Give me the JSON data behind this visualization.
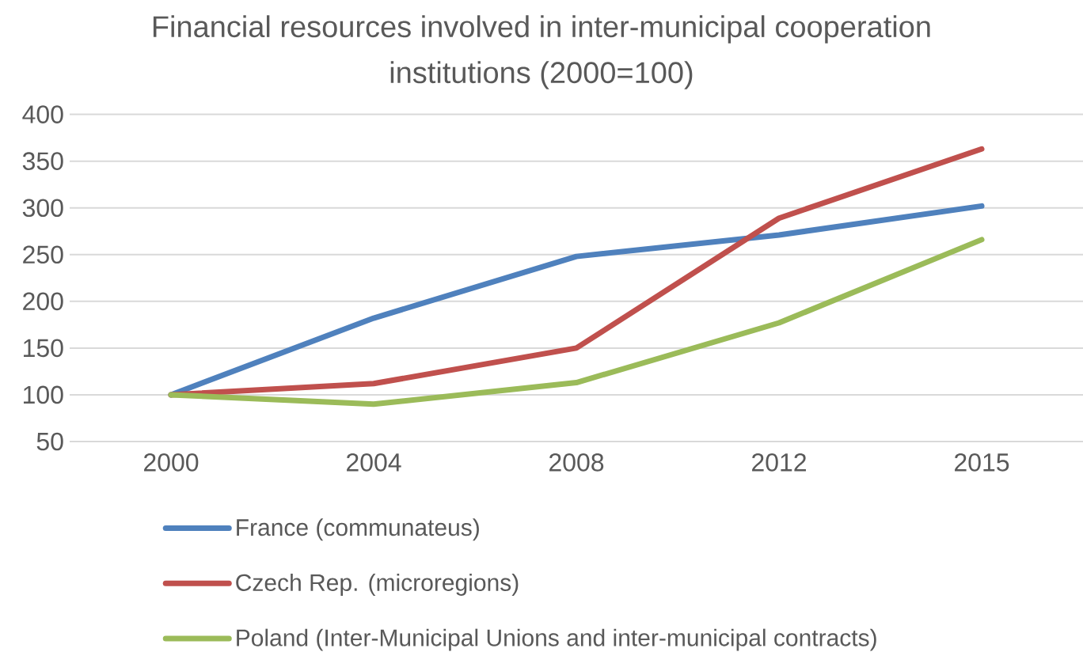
{
  "chart_data": {
    "type": "line",
    "title": "Financial resources involved in inter-municipal cooperation institutions (2000=100)",
    "categories": [
      "2000",
      "2004",
      "2008",
      "2012",
      "2015"
    ],
    "series": [
      {
        "name": "France (communateus)",
        "color": "#4f81bd",
        "values": [
          100,
          182,
          248,
          271,
          302
        ]
      },
      {
        "name": "Czech Rep. (microregions)",
        "color": "#c0504d",
        "values": [
          100,
          112,
          150,
          289,
          363
        ]
      },
      {
        "name": "Poland (Inter-Municipal Unions and inter-municipal contracts)",
        "color": "#9bbb59",
        "values": [
          100,
          90,
          113,
          177,
          266
        ]
      }
    ],
    "ylim": [
      50,
      400
    ],
    "yticks": [
      50,
      100,
      150,
      200,
      250,
      300,
      350,
      400
    ],
    "grid": "y",
    "legend": "bottom",
    "marker": "none",
    "line_style": "solid"
  }
}
